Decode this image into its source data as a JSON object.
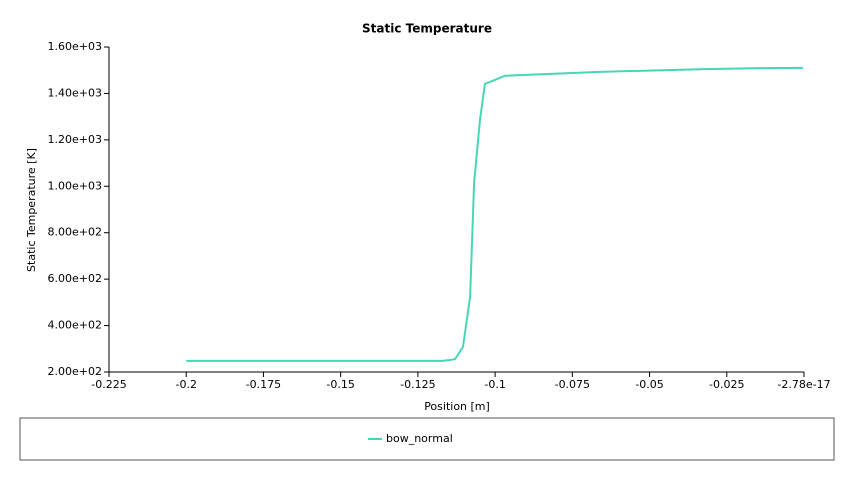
{
  "chart_data": {
    "type": "line",
    "title": "Static Temperature",
    "x_label": "Position [m]",
    "y_label": "Static Temperature [K]",
    "xlim": [
      -0.225,
      -2.78e-17
    ],
    "xticks": [
      -0.225,
      -0.2,
      -0.175,
      -0.15,
      -0.125,
      -0.1,
      -0.075,
      -0.05,
      -0.025,
      -2.78e-17
    ],
    "ylim": [
      200,
      1600
    ],
    "yticks": [
      {
        "value": 200,
        "label": "2.00e+02"
      },
      {
        "value": 400,
        "label": "4.00e+02"
      },
      {
        "value": 600,
        "label": "6.00e+02"
      },
      {
        "value": 800,
        "label": "8.00e+02"
      },
      {
        "value": 1000,
        "label": "1.00e+03"
      },
      {
        "value": 1200,
        "label": "1.20e+03"
      },
      {
        "value": 1400,
        "label": "1.40e+03"
      },
      {
        "value": 1600,
        "label": "1.60e+03"
      }
    ],
    "x": [
      -0.2,
      -0.1169,
      -0.113,
      -0.1104,
      -0.1081,
      -0.1068,
      -0.1049,
      -0.1033,
      -0.0968,
      -0.0661,
      -0.0337,
      -0.0142,
      -0.0003
    ],
    "series": [
      {
        "name": "bow_normal",
        "color": "#47d7b7",
        "values": [
          248,
          248,
          255,
          308,
          523,
          1015,
          1286,
          1441,
          1476,
          1493,
          1504,
          1509,
          1510
        ]
      }
    ]
  }
}
